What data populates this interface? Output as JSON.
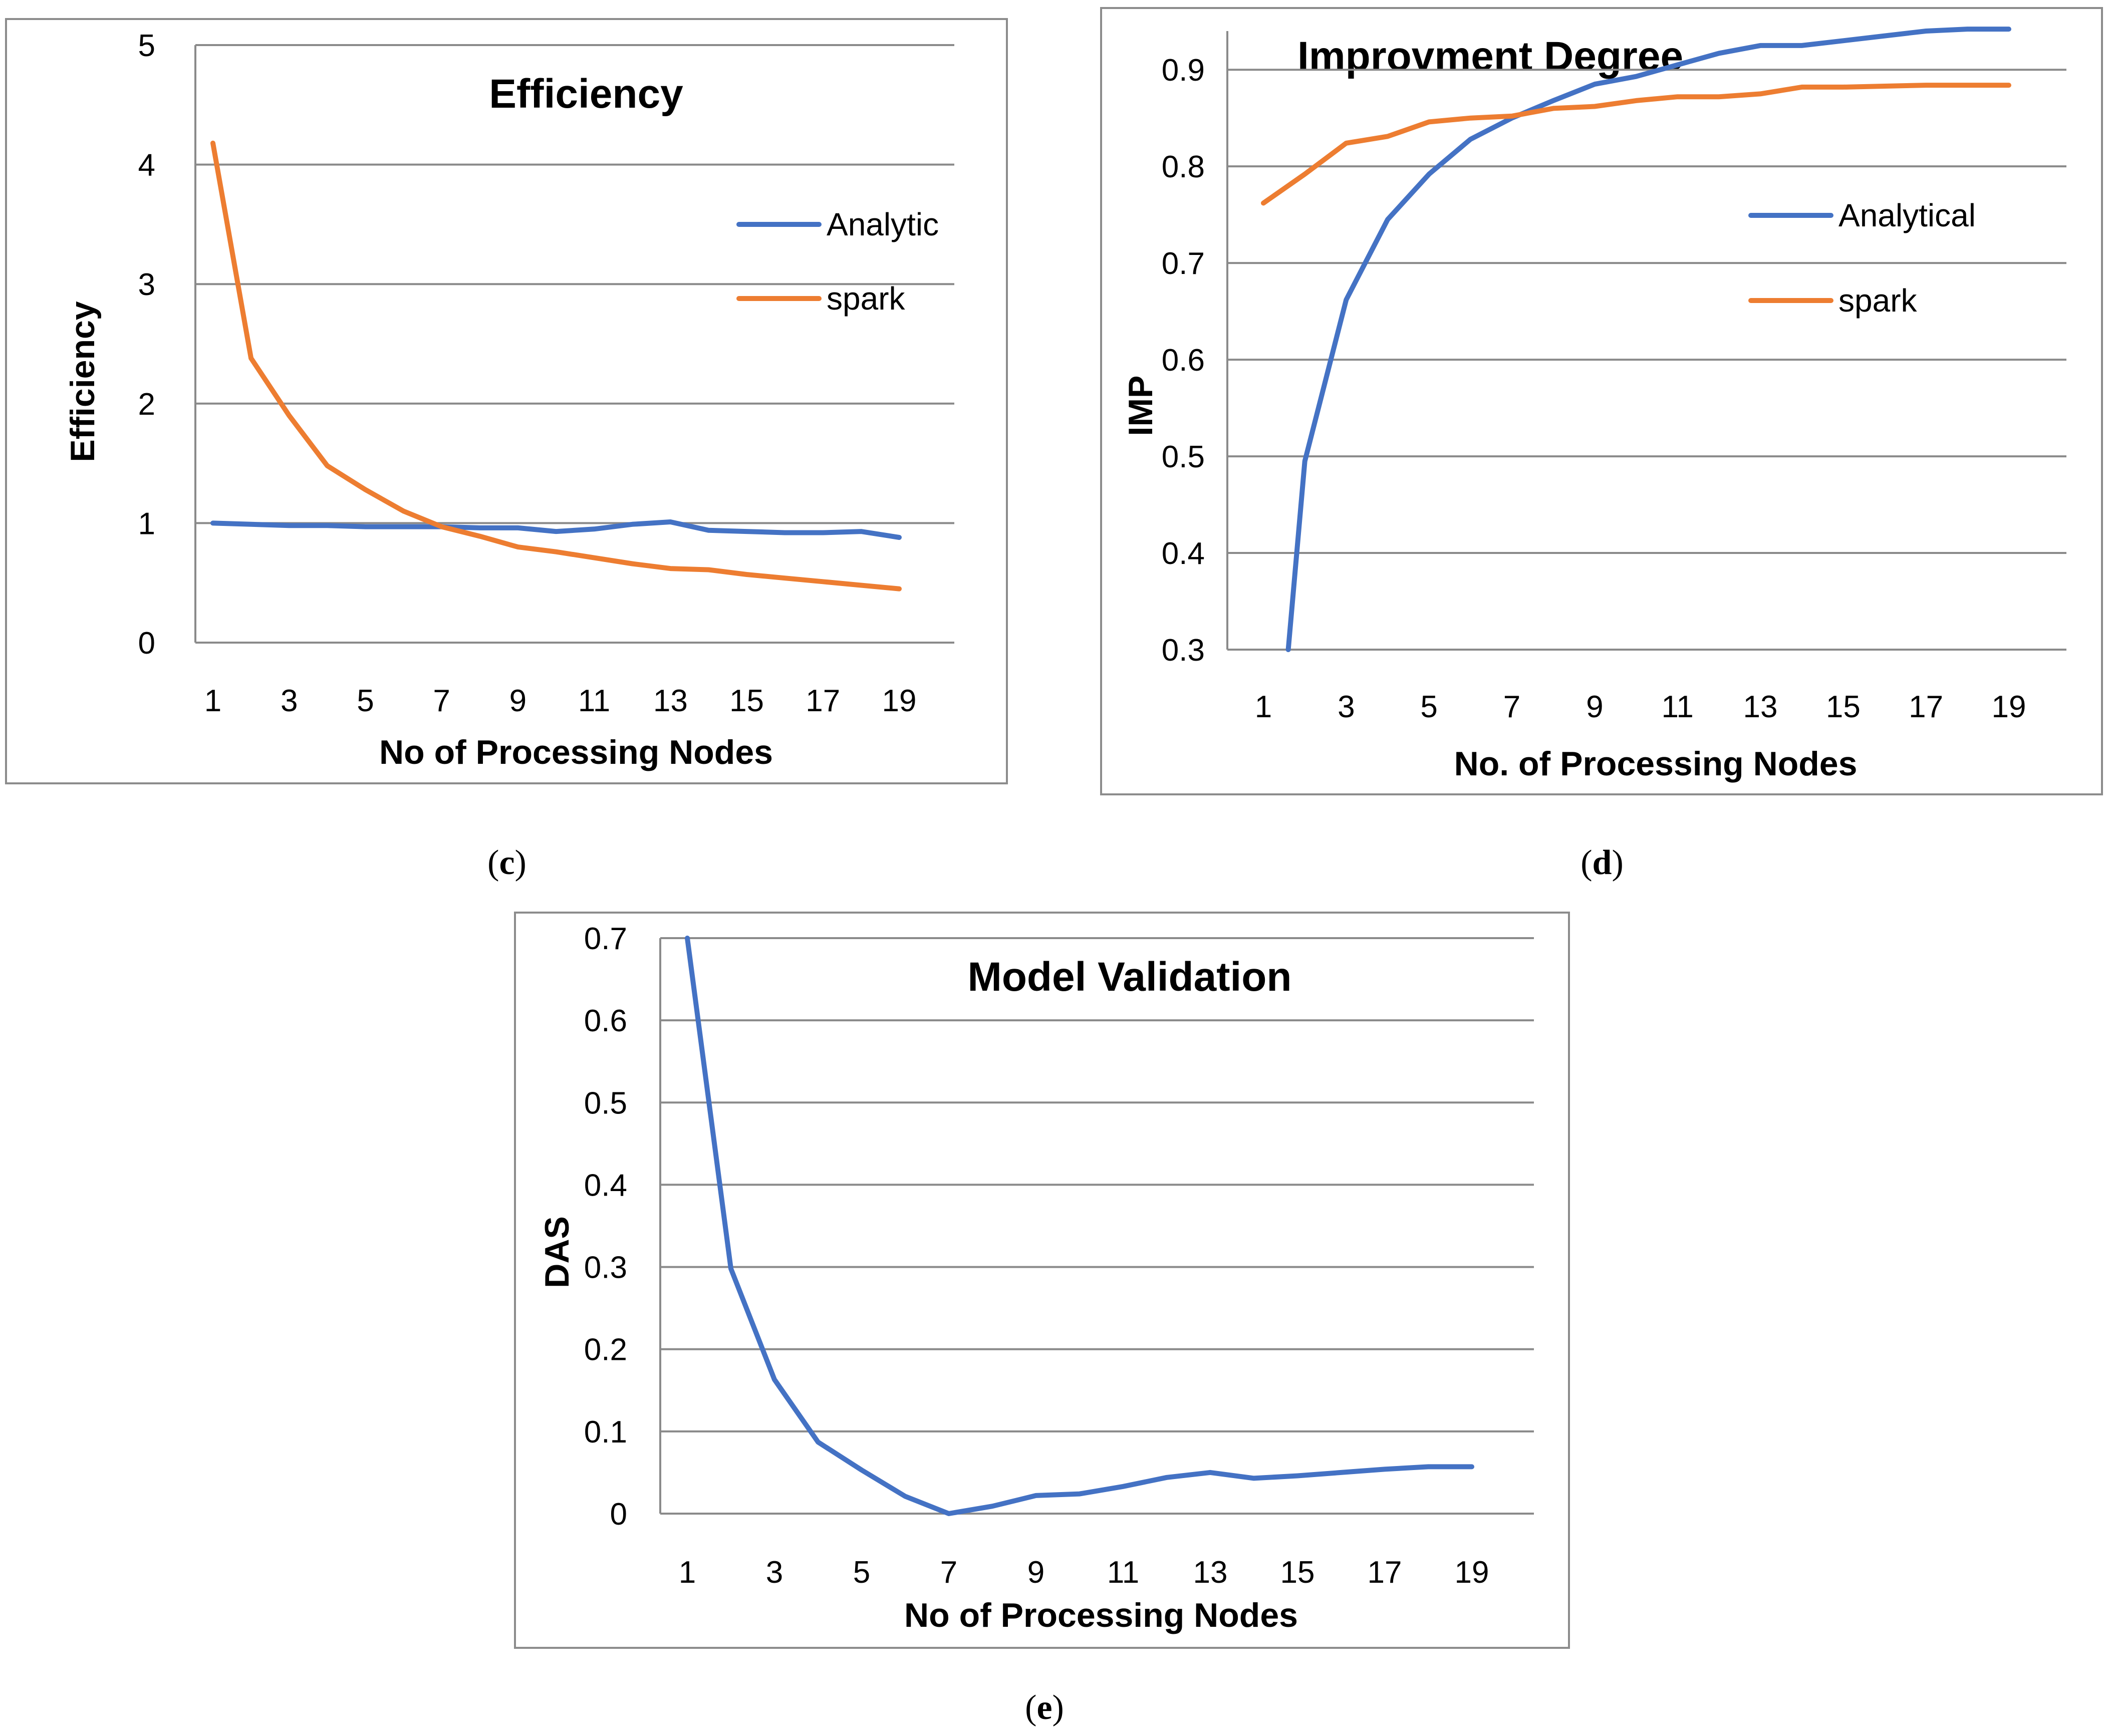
{
  "colors": {
    "analytic": "#4472C4",
    "spark": "#ED7D31"
  },
  "chart_data": [
    {
      "id": "c",
      "type": "line",
      "title": "Efficiency",
      "xlabel": "No of Processing Nodes",
      "ylabel": "Efficiency",
      "caption": "c",
      "x": [
        1,
        2,
        3,
        4,
        5,
        6,
        7,
        8,
        9,
        10,
        11,
        12,
        13,
        14,
        15,
        16,
        17,
        18,
        19
      ],
      "xticks": [
        "1",
        "3",
        "5",
        "7",
        "9",
        "11",
        "13",
        "15",
        "17",
        "19"
      ],
      "yticks": [
        "0",
        "1",
        "2",
        "3",
        "4",
        "5"
      ],
      "ylim": [
        0,
        5
      ],
      "grid": true,
      "legend_position": "right",
      "series": [
        {
          "name": "Analytic",
          "color": "#4472C4",
          "values": [
            1.0,
            0.99,
            0.98,
            0.98,
            0.97,
            0.97,
            0.97,
            0.96,
            0.96,
            0.93,
            0.95,
            0.99,
            1.01,
            0.94,
            0.93,
            0.92,
            0.92,
            0.93,
            0.88
          ]
        },
        {
          "name": "spark",
          "color": "#ED7D31",
          "values": [
            4.18,
            2.38,
            1.9,
            1.48,
            1.28,
            1.1,
            0.97,
            0.89,
            0.8,
            0.76,
            0.71,
            0.66,
            0.62,
            0.61,
            0.57,
            0.54,
            0.51,
            0.48,
            0.45
          ]
        }
      ]
    },
    {
      "id": "d",
      "type": "line",
      "title": "Improvment Degree",
      "xlabel": "No. of Processing Nodes",
      "ylabel": "IMP",
      "caption": "d",
      "x": [
        1,
        2,
        3,
        4,
        5,
        6,
        7,
        8,
        9,
        10,
        11,
        12,
        13,
        14,
        15,
        16,
        17,
        18,
        19
      ],
      "xticks": [
        "1",
        "3",
        "5",
        "7",
        "9",
        "11",
        "13",
        "15",
        "17",
        "19"
      ],
      "yticks": [
        "0.3",
        "0.4",
        "0.5",
        "0.6",
        "0.7",
        "0.8",
        "0.9"
      ],
      "ylim": [
        0.3,
        0.94
      ],
      "grid": true,
      "legend_position": "right",
      "series": [
        {
          "name": "Analytical",
          "color": "#4472C4",
          "x": [
            1.6,
            2,
            3,
            4,
            5,
            6,
            7,
            8,
            9,
            10,
            11,
            12,
            13,
            14,
            15,
            16,
            17,
            18,
            19
          ],
          "values": [
            0.3,
            0.495,
            0.662,
            0.745,
            0.792,
            0.828,
            0.85,
            0.868,
            0.885,
            0.893,
            0.905,
            0.917,
            0.925,
            0.925,
            0.93,
            0.935,
            0.94,
            0.942,
            0.942
          ]
        },
        {
          "name": "spark",
          "color": "#ED7D31",
          "values": [
            0.762,
            0.792,
            0.824,
            0.831,
            0.846,
            0.85,
            0.852,
            0.86,
            0.862,
            0.868,
            0.872,
            0.872,
            0.875,
            0.882,
            0.882,
            0.883,
            0.884,
            0.884,
            0.884
          ]
        }
      ]
    },
    {
      "id": "e",
      "type": "line",
      "title": "Model Validation",
      "xlabel": "No of Processing Nodes",
      "ylabel": "DAS",
      "caption": "e",
      "x": [
        1,
        2,
        3,
        4,
        5,
        6,
        7,
        8,
        9,
        10,
        11,
        12,
        13,
        14,
        15,
        16,
        17,
        18,
        19
      ],
      "xticks": [
        "1",
        "3",
        "5",
        "7",
        "9",
        "11",
        "13",
        "15",
        "17",
        "19"
      ],
      "yticks": [
        "0",
        "0.1",
        "0.2",
        "0.3",
        "0.4",
        "0.5",
        "0.6",
        "0.7"
      ],
      "ylim": [
        0,
        0.7
      ],
      "grid": true,
      "legend_position": "none",
      "series": [
        {
          "name": "DAS",
          "color": "#4472C4",
          "values": [
            0.7,
            0.298,
            0.163,
            0.087,
            0.053,
            0.021,
            0.0,
            0.009,
            0.022,
            0.024,
            0.033,
            0.044,
            0.05,
            0.043,
            0.046,
            0.05,
            0.054,
            0.057,
            0.057
          ]
        }
      ]
    }
  ]
}
